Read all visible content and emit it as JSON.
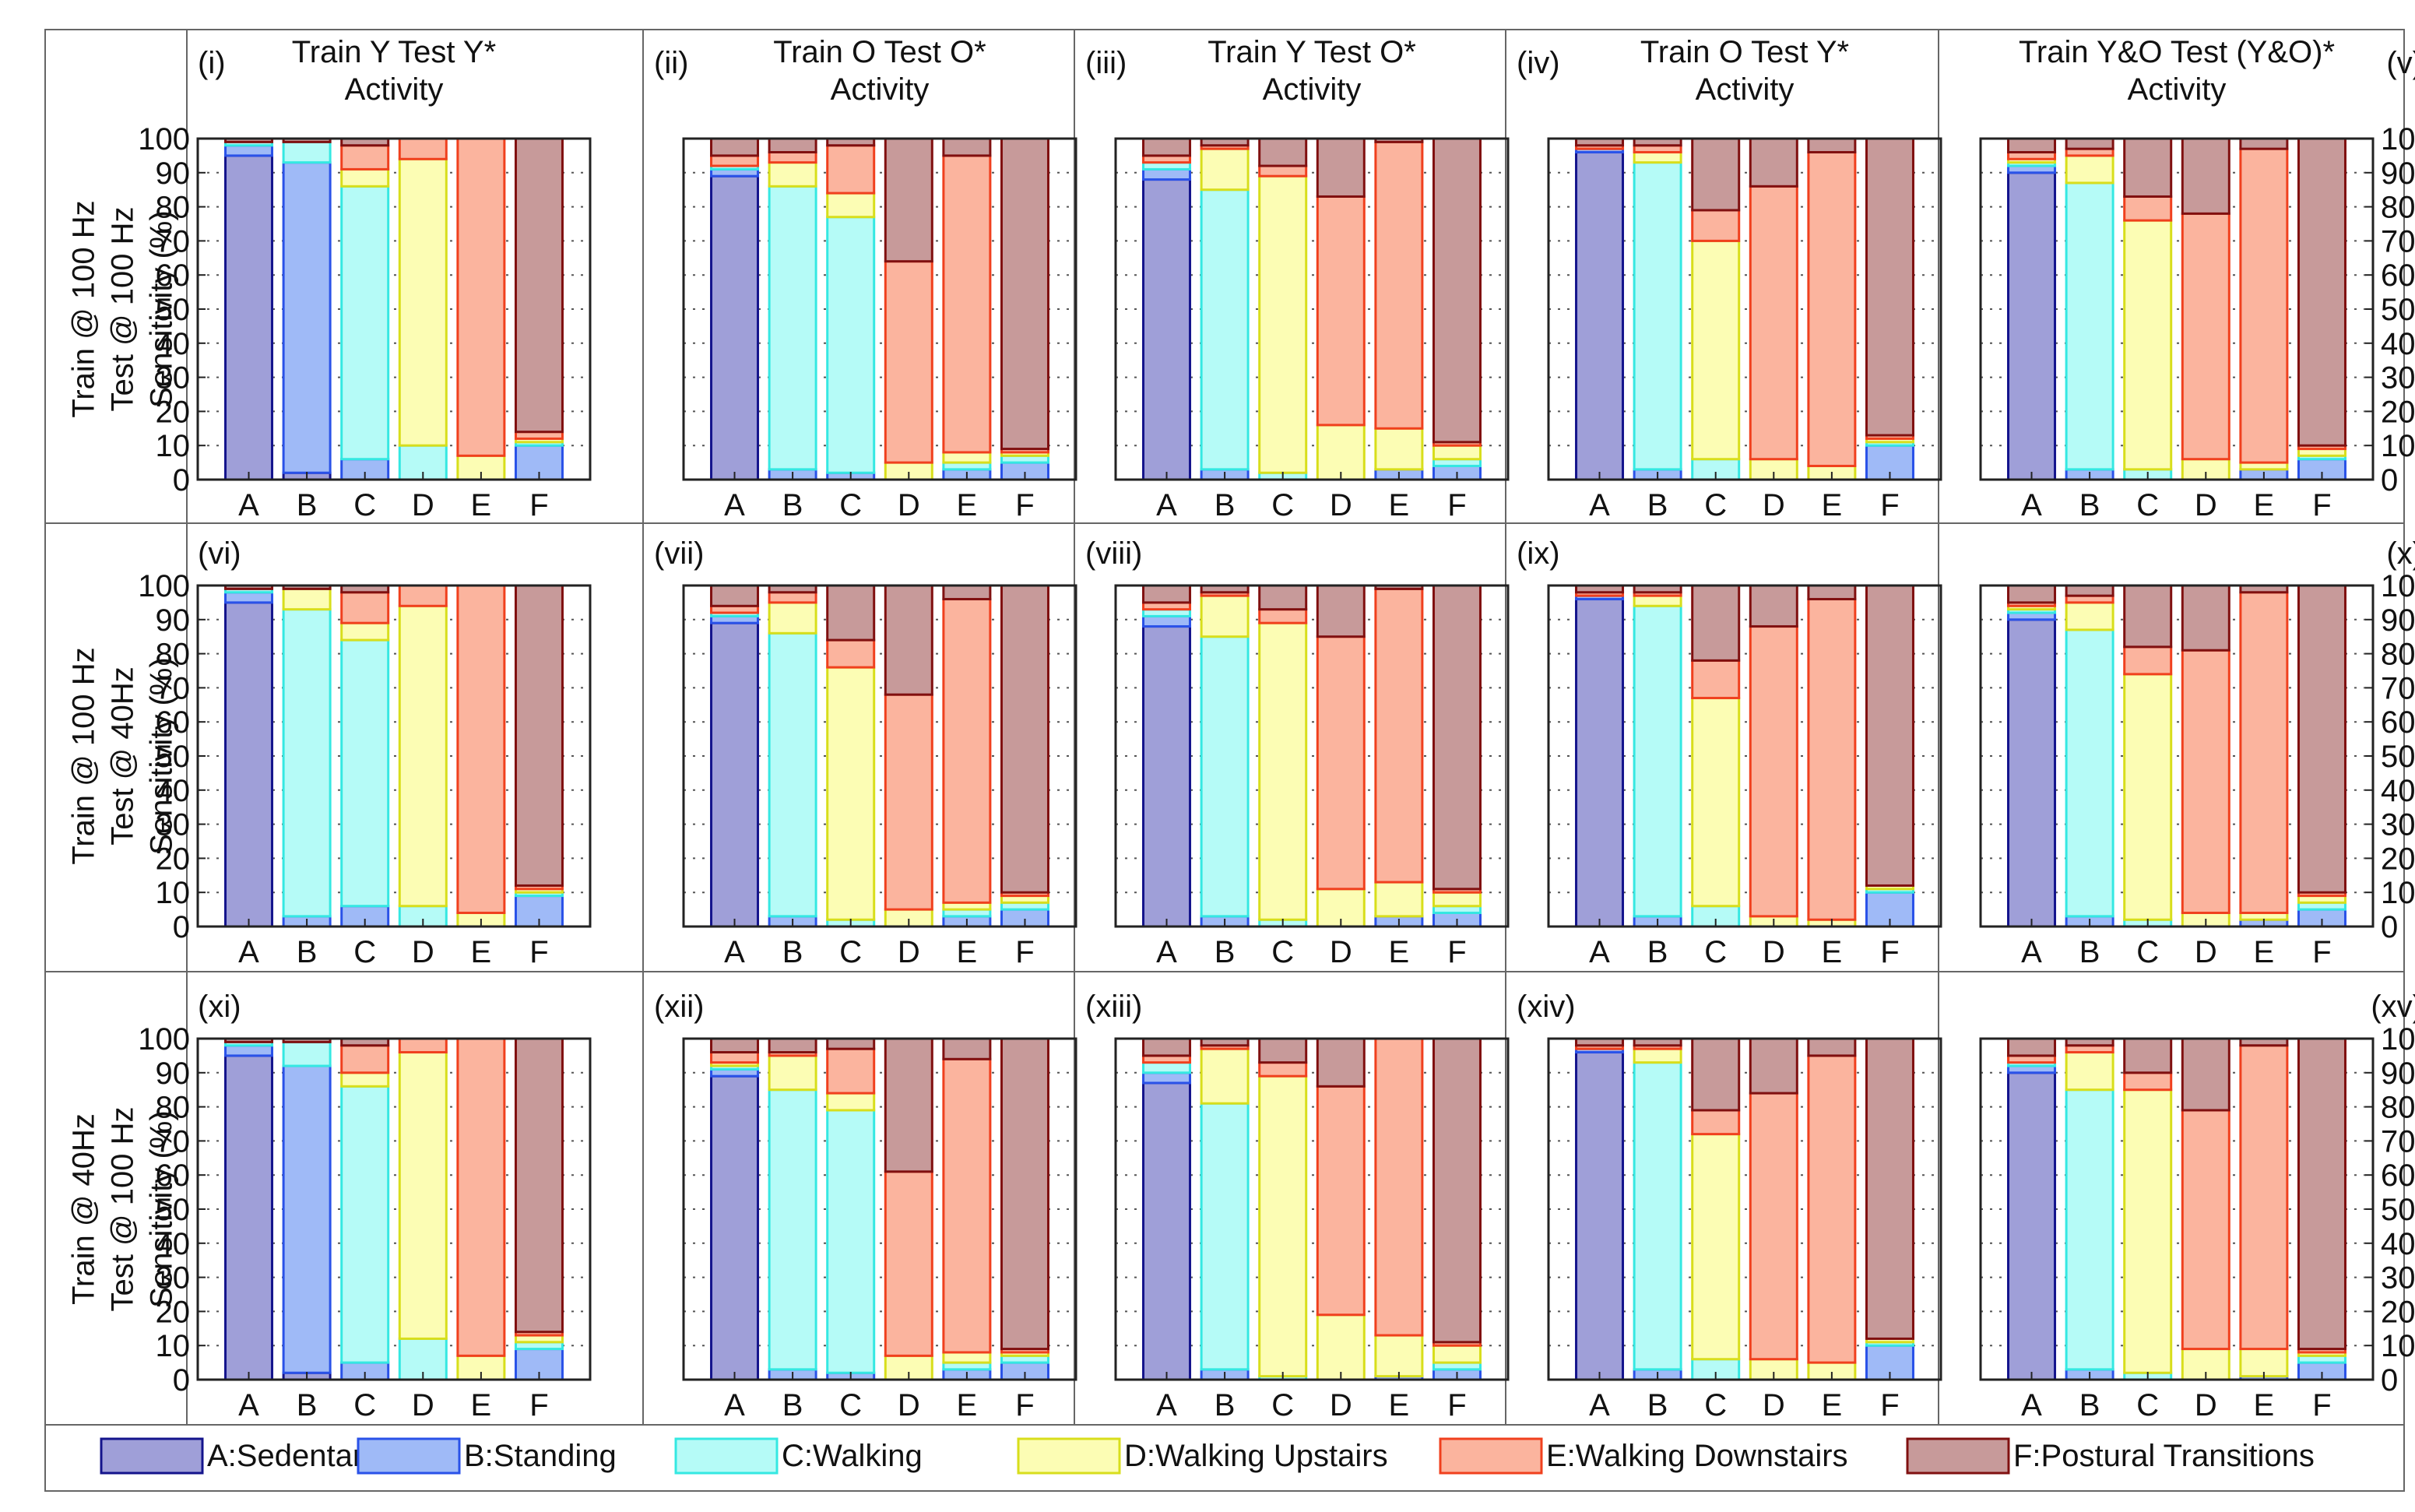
{
  "figure": {
    "activity_label": "Activity",
    "sensitivity_label": "Sensitivity (%)",
    "colors": {
      "A": {
        "fill": "#9f9fd8",
        "stroke": "#14148c"
      },
      "B": {
        "fill": "#9fbaf7",
        "stroke": "#2a52e8"
      },
      "C": {
        "fill": "#b5fbf7",
        "stroke": "#35e8e2"
      },
      "D": {
        "fill": "#fcfdb4",
        "stroke": "#d8de1c"
      },
      "E": {
        "fill": "#fbb49e",
        "stroke": "#f0401e"
      },
      "F": {
        "fill": "#c79a9a",
        "stroke": "#801010"
      },
      "grid": "#555555",
      "frame": "#666666"
    },
    "column_titles": [
      "Train Y Test Y*",
      "Train O Test O*",
      "Train Y Test O*",
      "Train O Test Y*",
      "Train Y&O Test (Y&O)*"
    ],
    "row_labels": [
      {
        "line1": "Train @ 100 Hz",
        "line2": "Test @ 100 Hz"
      },
      {
        "line1": "Train @ 100 Hz",
        "line2": "Test @ 40Hz"
      },
      {
        "line1": "Train @ 40Hz",
        "line2": "Test @ 100 Hz"
      }
    ],
    "legend": [
      {
        "key": "A",
        "label": "A:Sedentary"
      },
      {
        "key": "B",
        "label": "B:Standing"
      },
      {
        "key": "C",
        "label": "C:Walking"
      },
      {
        "key": "D",
        "label": "D:Walking Upstairs"
      },
      {
        "key": "E",
        "label": "E:Walking Downstairs"
      },
      {
        "key": "F",
        "label": "F:Postural Transitions"
      }
    ]
  },
  "chart_data": {
    "type": "stacked-bar",
    "categories": [
      "A",
      "B",
      "C",
      "D",
      "E",
      "F"
    ],
    "stack_order": [
      "A",
      "B",
      "C",
      "D",
      "E",
      "F"
    ],
    "ylim": [
      0,
      100
    ],
    "yticks": [
      0,
      10,
      20,
      30,
      40,
      50,
      60,
      70,
      80,
      90,
      100
    ],
    "grid": "dotted horizontal",
    "note": "each bar: cumulative boundaries (%) between stacked segments A|B, B|C, C|D, D|E, E|F",
    "panels": [
      {
        "id": "(i)",
        "bounds": {
          "A": [
            95,
            98,
            99,
            99,
            99
          ],
          "B": [
            2,
            93,
            99,
            99,
            99
          ],
          "C": [
            0,
            6,
            86,
            91,
            98
          ],
          "D": [
            0,
            0,
            10,
            94,
            100
          ],
          "E": [
            0,
            0,
            0,
            7,
            100
          ],
          "F": [
            0,
            10,
            11,
            12,
            14
          ]
        }
      },
      {
        "id": "(ii)",
        "bounds": {
          "A": [
            89,
            91,
            92,
            92,
            95
          ],
          "B": [
            0,
            3,
            86,
            93,
            96
          ],
          "C": [
            0,
            2,
            77,
            84,
            98
          ],
          "D": [
            0,
            0,
            0,
            5,
            64
          ],
          "E": [
            0,
            3,
            5,
            8,
            95
          ],
          "F": [
            0,
            5,
            7,
            8,
            9
          ]
        }
      },
      {
        "id": "(iii)",
        "bounds": {
          "A": [
            88,
            91,
            93,
            93,
            95
          ],
          "B": [
            0,
            3,
            85,
            97,
            98
          ],
          "C": [
            0,
            0,
            2,
            89,
            92
          ],
          "D": [
            0,
            0,
            0,
            16,
            83
          ],
          "E": [
            0,
            3,
            3,
            15,
            99
          ],
          "F": [
            0,
            4,
            6,
            10,
            11
          ]
        }
      },
      {
        "id": "(iv)",
        "bounds": {
          "A": [
            96,
            97,
            97,
            97,
            98
          ],
          "B": [
            0,
            3,
            93,
            96,
            98
          ],
          "C": [
            0,
            0,
            6,
            70,
            79
          ],
          "D": [
            0,
            0,
            0,
            6,
            86
          ],
          "E": [
            0,
            0,
            0,
            4,
            96
          ],
          "F": [
            0,
            10,
            11,
            12,
            13
          ]
        }
      },
      {
        "id": "(v)",
        "bounds": {
          "A": [
            90,
            92,
            93,
            94,
            96
          ],
          "B": [
            0,
            3,
            87,
            95,
            97
          ],
          "C": [
            0,
            0,
            3,
            76,
            83
          ],
          "D": [
            0,
            0,
            0,
            6,
            78
          ],
          "E": [
            0,
            3,
            3,
            5,
            97
          ],
          "F": [
            0,
            6,
            7,
            9,
            10
          ]
        }
      },
      {
        "id": "(vi)",
        "bounds": {
          "A": [
            95,
            98,
            99,
            99,
            99
          ],
          "B": [
            0,
            3,
            93,
            99,
            99
          ],
          "C": [
            0,
            6,
            84,
            89,
            98
          ],
          "D": [
            0,
            0,
            6,
            94,
            100
          ],
          "E": [
            0,
            0,
            0,
            4,
            100
          ],
          "F": [
            0,
            9,
            10,
            11,
            12
          ]
        }
      },
      {
        "id": "(vii)",
        "bounds": {
          "A": [
            89,
            91,
            92,
            92,
            94
          ],
          "B": [
            0,
            3,
            86,
            95,
            98
          ],
          "C": [
            0,
            0,
            2,
            76,
            84
          ],
          "D": [
            0,
            0,
            0,
            5,
            68
          ],
          "E": [
            0,
            3,
            5,
            7,
            96
          ],
          "F": [
            0,
            5,
            7,
            9,
            10
          ]
        }
      },
      {
        "id": "(viii)",
        "bounds": {
          "A": [
            88,
            91,
            93,
            93,
            95
          ],
          "B": [
            0,
            3,
            85,
            97,
            98
          ],
          "C": [
            0,
            0,
            2,
            89,
            93
          ],
          "D": [
            0,
            0,
            0,
            11,
            85
          ],
          "E": [
            0,
            3,
            3,
            13,
            99
          ],
          "F": [
            0,
            4,
            6,
            10,
            11
          ]
        }
      },
      {
        "id": "(ix)",
        "bounds": {
          "A": [
            96,
            97,
            97,
            97,
            98
          ],
          "B": [
            0,
            3,
            94,
            97,
            98
          ],
          "C": [
            0,
            0,
            6,
            67,
            78
          ],
          "D": [
            0,
            0,
            0,
            3,
            88
          ],
          "E": [
            0,
            0,
            0,
            2,
            96
          ],
          "F": [
            0,
            10,
            11,
            12,
            12
          ]
        }
      },
      {
        "id": "(x)",
        "bounds": {
          "A": [
            90,
            92,
            93,
            94,
            95
          ],
          "B": [
            0,
            3,
            87,
            95,
            97
          ],
          "C": [
            0,
            0,
            2,
            74,
            82
          ],
          "D": [
            0,
            0,
            0,
            4,
            81
          ],
          "E": [
            0,
            2,
            2,
            4,
            98
          ],
          "F": [
            0,
            5,
            7,
            9,
            10
          ]
        }
      },
      {
        "id": "(xi)",
        "bounds": {
          "A": [
            95,
            98,
            99,
            99,
            99
          ],
          "B": [
            2,
            92,
            99,
            99,
            99
          ],
          "C": [
            0,
            5,
            86,
            90,
            98
          ],
          "D": [
            0,
            0,
            12,
            96,
            100
          ],
          "E": [
            0,
            0,
            0,
            7,
            100
          ],
          "F": [
            0,
            9,
            11,
            13,
            14
          ]
        }
      },
      {
        "id": "(xii)",
        "bounds": {
          "A": [
            89,
            91,
            92,
            93,
            96
          ],
          "B": [
            0,
            3,
            85,
            95,
            96
          ],
          "C": [
            0,
            2,
            79,
            84,
            97
          ],
          "D": [
            0,
            0,
            0,
            7,
            61
          ],
          "E": [
            0,
            3,
            5,
            8,
            94
          ],
          "F": [
            0,
            5,
            7,
            8,
            9
          ]
        }
      },
      {
        "id": "(xiii)",
        "bounds": {
          "A": [
            87,
            90,
            93,
            93,
            95
          ],
          "B": [
            0,
            3,
            81,
            97,
            98
          ],
          "C": [
            0,
            0,
            1,
            89,
            93
          ],
          "D": [
            0,
            0,
            0,
            19,
            86
          ],
          "E": [
            0,
            1,
            1,
            13,
            100
          ],
          "F": [
            0,
            3,
            5,
            10,
            11
          ]
        }
      },
      {
        "id": "(xiv)",
        "bounds": {
          "A": [
            96,
            97,
            97,
            97,
            98
          ],
          "B": [
            0,
            3,
            93,
            97,
            98
          ],
          "C": [
            0,
            0,
            6,
            72,
            79
          ],
          "D": [
            0,
            0,
            0,
            6,
            84
          ],
          "E": [
            0,
            0,
            0,
            5,
            95
          ],
          "F": [
            0,
            10,
            11,
            12,
            12
          ]
        }
      },
      {
        "id": "(xv)",
        "bounds": {
          "A": [
            90,
            92,
            93,
            93,
            95
          ],
          "B": [
            0,
            3,
            85,
            96,
            98
          ],
          "C": [
            0,
            0,
            2,
            85,
            90
          ],
          "D": [
            0,
            0,
            0,
            9,
            79
          ],
          "E": [
            0,
            1,
            1,
            9,
            98
          ],
          "F": [
            0,
            5,
            7,
            8,
            9
          ]
        }
      }
    ]
  }
}
